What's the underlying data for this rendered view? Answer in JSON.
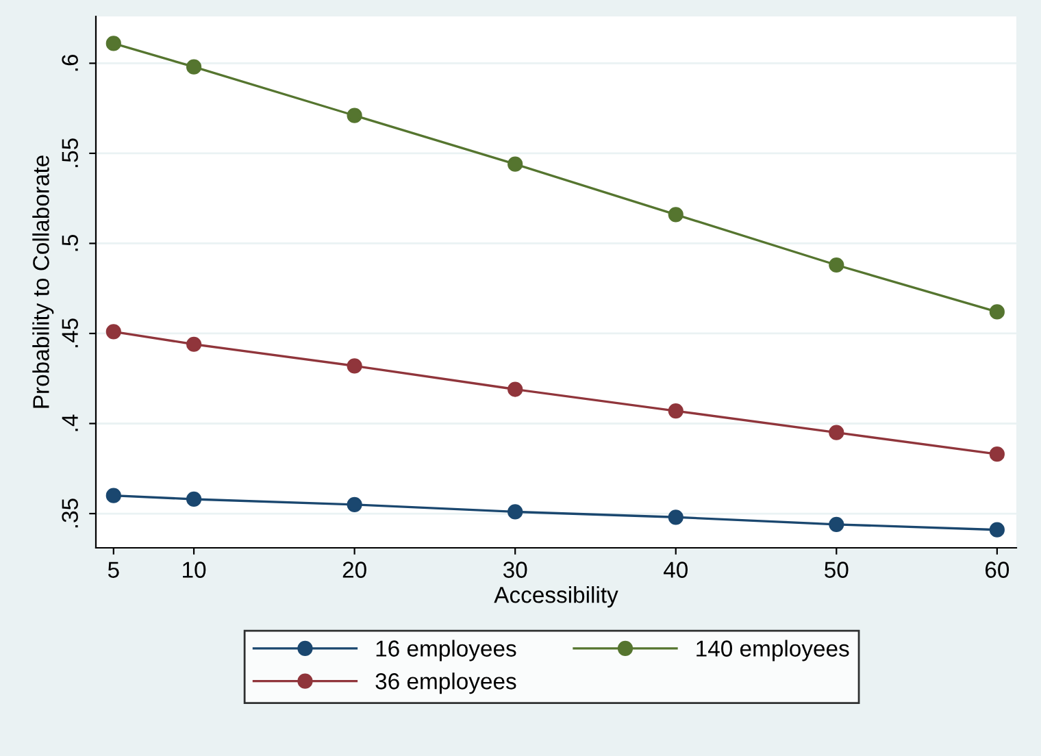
{
  "chart_data": {
    "type": "line",
    "xlabel": "Accessibility",
    "ylabel": "Probability to Collaborate",
    "x": [
      5,
      10,
      20,
      30,
      40,
      50,
      60
    ],
    "series": [
      {
        "name": "16 employees",
        "color": "#1a476f",
        "values": [
          0.36,
          0.358,
          0.355,
          0.351,
          0.348,
          0.344,
          0.341
        ]
      },
      {
        "name": "36 employees",
        "color": "#90353b",
        "values": [
          0.451,
          0.444,
          0.432,
          0.419,
          0.407,
          0.395,
          0.383
        ]
      },
      {
        "name": "140 employees",
        "color": "#55752f",
        "values": [
          0.611,
          0.598,
          0.571,
          0.544,
          0.516,
          0.488,
          0.462
        ]
      }
    ],
    "xlim": [
      3.9,
      61.2
    ],
    "xticks": [
      5,
      10,
      20,
      30,
      40,
      50,
      60
    ],
    "ylim": [
      0.331,
      0.626
    ],
    "yticks": [
      {
        "value": 0.35,
        "label": ".35"
      },
      {
        "value": 0.4,
        "label": ".4"
      },
      {
        "value": 0.45,
        "label": ".45"
      },
      {
        "value": 0.5,
        "label": ".5"
      },
      {
        "value": 0.55,
        "label": ".55"
      },
      {
        "value": 0.6,
        "label": ".6"
      }
    ],
    "grid": "y",
    "legend": "bottom",
    "marker": "circle",
    "line_style": "solid"
  }
}
